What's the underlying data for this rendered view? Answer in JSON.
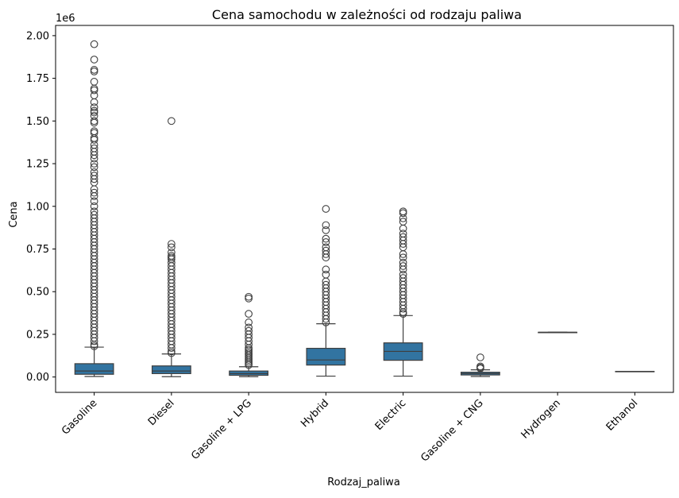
{
  "chart_data": {
    "type": "box",
    "title": "Cena samochodu w zależności od rodzaju paliwa",
    "xlabel": "Rodzaj_paliwa",
    "ylabel": "Cena",
    "y_offset_label": "1e6",
    "ylim": [
      -0.09,
      2.06
    ],
    "y_ticks": [
      0,
      0.25,
      0.5,
      0.75,
      1.0,
      1.25,
      1.5,
      1.75,
      2.0
    ],
    "y_tick_labels": [
      "0.00",
      "0.25",
      "0.50",
      "0.75",
      "1.00",
      "1.25",
      "1.50",
      "1.75",
      "2.00"
    ],
    "box_color": "#3274a1",
    "edge_color": "#3f3f3f",
    "grid": false,
    "categories": [
      "Gasoline",
      "Diesel",
      "Gasoline + LPG",
      "Hybrid",
      "Electric",
      "Gasoline + CNG",
      "Hydrogen",
      "Ethanol"
    ],
    "boxes": [
      {
        "category": "Gasoline",
        "whisker_low": 0.003,
        "q1": 0.016,
        "median": 0.035,
        "q3": 0.078,
        "whisker_high": 0.175,
        "outliers": [
          1.95,
          1.86,
          1.8,
          1.79,
          1.73,
          1.69,
          1.68,
          1.65,
          1.61,
          1.58,
          1.56,
          1.55,
          1.53,
          1.5,
          1.49,
          1.44,
          1.43,
          1.4,
          1.39,
          1.36,
          1.34,
          1.32,
          1.3,
          1.28,
          1.25,
          1.23,
          1.2,
          1.18,
          1.16,
          1.14,
          1.1,
          1.08,
          1.06,
          1.03,
          1.0,
          0.97,
          0.95,
          0.93,
          0.91,
          0.89,
          0.87,
          0.85,
          0.83,
          0.81,
          0.79,
          0.77,
          0.75,
          0.73,
          0.71,
          0.69,
          0.67,
          0.65,
          0.63,
          0.61,
          0.59,
          0.57,
          0.55,
          0.53,
          0.51,
          0.49,
          0.47,
          0.45,
          0.43,
          0.41,
          0.39,
          0.37,
          0.35,
          0.33,
          0.31,
          0.29,
          0.27,
          0.25,
          0.23,
          0.21,
          0.19,
          0.18
        ]
      },
      {
        "category": "Diesel",
        "whisker_low": 0.002,
        "q1": 0.02,
        "median": 0.035,
        "q3": 0.065,
        "whisker_high": 0.135,
        "outliers": [
          1.5,
          0.78,
          0.76,
          0.73,
          0.71,
          0.7,
          0.69,
          0.67,
          0.65,
          0.63,
          0.61,
          0.59,
          0.57,
          0.55,
          0.53,
          0.51,
          0.49,
          0.47,
          0.45,
          0.43,
          0.41,
          0.39,
          0.37,
          0.35,
          0.33,
          0.31,
          0.29,
          0.27,
          0.25,
          0.23,
          0.21,
          0.19,
          0.17,
          0.15,
          0.14
        ]
      },
      {
        "category": "Gasoline + LPG",
        "whisker_low": 0.002,
        "q1": 0.01,
        "median": 0.02,
        "q3": 0.035,
        "whisker_high": 0.06,
        "outliers": [
          0.47,
          0.46,
          0.37,
          0.32,
          0.29,
          0.27,
          0.25,
          0.23,
          0.21,
          0.19,
          0.17,
          0.16,
          0.15,
          0.14,
          0.13,
          0.12,
          0.11,
          0.1,
          0.09,
          0.08,
          0.07
        ]
      },
      {
        "category": "Hybrid",
        "whisker_low": 0.005,
        "q1": 0.07,
        "median": 0.1,
        "q3": 0.168,
        "whisker_high": 0.312,
        "outliers": [
          0.985,
          0.89,
          0.86,
          0.81,
          0.79,
          0.76,
          0.74,
          0.72,
          0.7,
          0.63,
          0.6,
          0.56,
          0.54,
          0.52,
          0.5,
          0.48,
          0.46,
          0.44,
          0.42,
          0.4,
          0.38,
          0.36,
          0.34,
          0.32
        ]
      },
      {
        "category": "Electric",
        "whisker_low": 0.005,
        "q1": 0.098,
        "median": 0.15,
        "q3": 0.2,
        "whisker_high": 0.36,
        "outliers": [
          0.97,
          0.96,
          0.93,
          0.91,
          0.87,
          0.84,
          0.82,
          0.8,
          0.78,
          0.76,
          0.72,
          0.7,
          0.67,
          0.65,
          0.63,
          0.6,
          0.58,
          0.56,
          0.54,
          0.52,
          0.5,
          0.48,
          0.46,
          0.44,
          0.42,
          0.4,
          0.38,
          0.37
        ]
      },
      {
        "category": "Gasoline + CNG",
        "whisker_low": 0.003,
        "q1": 0.012,
        "median": 0.02,
        "q3": 0.028,
        "whisker_high": 0.042,
        "outliers": [
          0.115,
          0.062,
          0.055,
          0.05
        ]
      },
      {
        "category": "Hydrogen",
        "whisker_low": 0.262,
        "q1": 0.262,
        "median": 0.262,
        "q3": 0.262,
        "whisker_high": 0.262,
        "outliers": []
      },
      {
        "category": "Ethanol",
        "whisker_low": 0.033,
        "q1": 0.033,
        "median": 0.033,
        "q3": 0.033,
        "whisker_high": 0.033,
        "outliers": []
      }
    ]
  }
}
